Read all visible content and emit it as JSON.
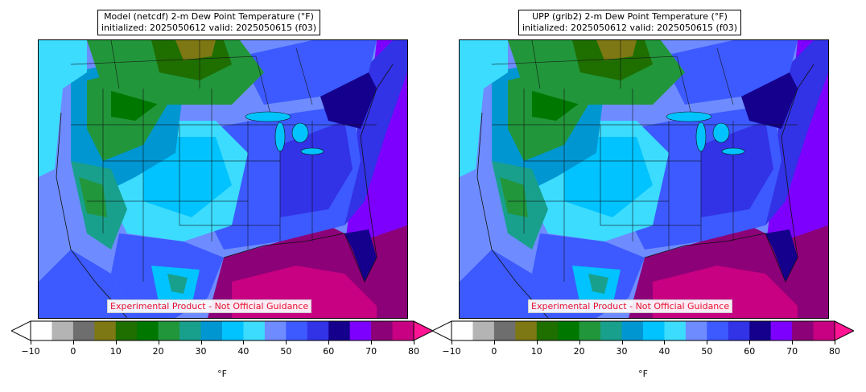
{
  "panels": [
    {
      "title_line1": "Model (netcdf) 2-m Dew Point Temperature (°F)",
      "title_line2": "initialized: 2025050612 valid: 2025050615 (f03)",
      "watermark": "Experimental Product - Not Official Guidance"
    },
    {
      "title_line1": "UPP (grib2) 2-m Dew Point Temperature (°F)",
      "title_line2": "initialized: 2025050612 valid: 2025050615 (f03)",
      "watermark": "Experimental Product - Not Official Guidance"
    }
  ],
  "colorbar": {
    "unit": "°F",
    "ticks": [
      "−10",
      "0",
      "10",
      "20",
      "30",
      "40",
      "50",
      "60",
      "70",
      "80"
    ],
    "bounds": [
      -10,
      -5,
      0,
      5,
      10,
      15,
      20,
      25,
      30,
      35,
      40,
      45,
      50,
      55,
      60,
      65,
      70,
      75,
      80
    ],
    "under_color": "#ffffff",
    "over_color": "#ff1493",
    "colors": [
      "#ffffff",
      "#b4b4b4",
      "#6e6e6e",
      "#7d7814",
      "#1e6e00",
      "#007800",
      "#22963a",
      "#18a08c",
      "#0096d2",
      "#00c3ff",
      "#3cdcff",
      "#6e8cff",
      "#3c5aff",
      "#3232e6",
      "#14008c",
      "#7d00ff",
      "#8c0078",
      "#c80082"
    ]
  },
  "colors": {
    "accent_red": "#e8112d"
  }
}
